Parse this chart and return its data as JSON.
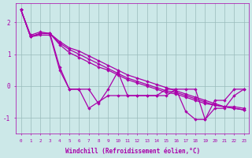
{
  "bg_color": "#cce8e8",
  "line_color": "#aa00aa",
  "grid_color": "#99bbbb",
  "xlabel": "Windchill (Refroidissement éolien,°C)",
  "xlim": [
    -0.5,
    23.5
  ],
  "ylim": [
    -1.5,
    2.6
  ],
  "yticks": [
    -1,
    0,
    1,
    2
  ],
  "xticks": [
    0,
    1,
    2,
    3,
    4,
    5,
    6,
    7,
    8,
    9,
    10,
    11,
    12,
    13,
    14,
    15,
    16,
    17,
    18,
    19,
    20,
    21,
    22,
    23
  ],
  "series": [
    [
      2.4,
      1.6,
      1.7,
      1.65,
      0.6,
      -0.1,
      -0.1,
      -0.1,
      -0.55,
      -0.1,
      0.45,
      -0.3,
      -0.3,
      -0.3,
      -0.3,
      -0.3,
      -0.1,
      -0.1,
      -0.1,
      -1.05,
      -0.45,
      -0.45,
      -0.1,
      -0.1
    ],
    [
      2.4,
      1.55,
      1.6,
      1.6,
      0.5,
      -0.1,
      -0.1,
      -0.7,
      -0.5,
      -0.3,
      -0.3,
      -0.3,
      -0.3,
      -0.3,
      -0.3,
      -0.1,
      -0.1,
      -0.8,
      -1.05,
      -1.05,
      -0.7,
      -0.7,
      -0.3,
      -0.1
    ],
    [
      2.4,
      1.55,
      1.65,
      1.65,
      1.4,
      1.2,
      1.1,
      0.95,
      0.8,
      0.65,
      0.5,
      0.35,
      0.25,
      0.15,
      0.05,
      -0.05,
      -0.15,
      -0.25,
      -0.35,
      -0.45,
      -0.55,
      -0.65,
      -0.7,
      -0.75
    ],
    [
      2.4,
      1.55,
      1.65,
      1.65,
      1.35,
      1.15,
      1.0,
      0.85,
      0.7,
      0.55,
      0.4,
      0.25,
      0.15,
      0.05,
      -0.05,
      -0.15,
      -0.2,
      -0.3,
      -0.4,
      -0.5,
      -0.6,
      -0.65,
      -0.7,
      -0.75
    ],
    [
      2.4,
      1.55,
      1.65,
      1.65,
      1.3,
      1.05,
      0.9,
      0.75,
      0.6,
      0.5,
      0.35,
      0.2,
      0.1,
      0.0,
      -0.1,
      -0.2,
      -0.25,
      -0.35,
      -0.45,
      -0.55,
      -0.6,
      -0.65,
      -0.65,
      -0.7
    ]
  ]
}
